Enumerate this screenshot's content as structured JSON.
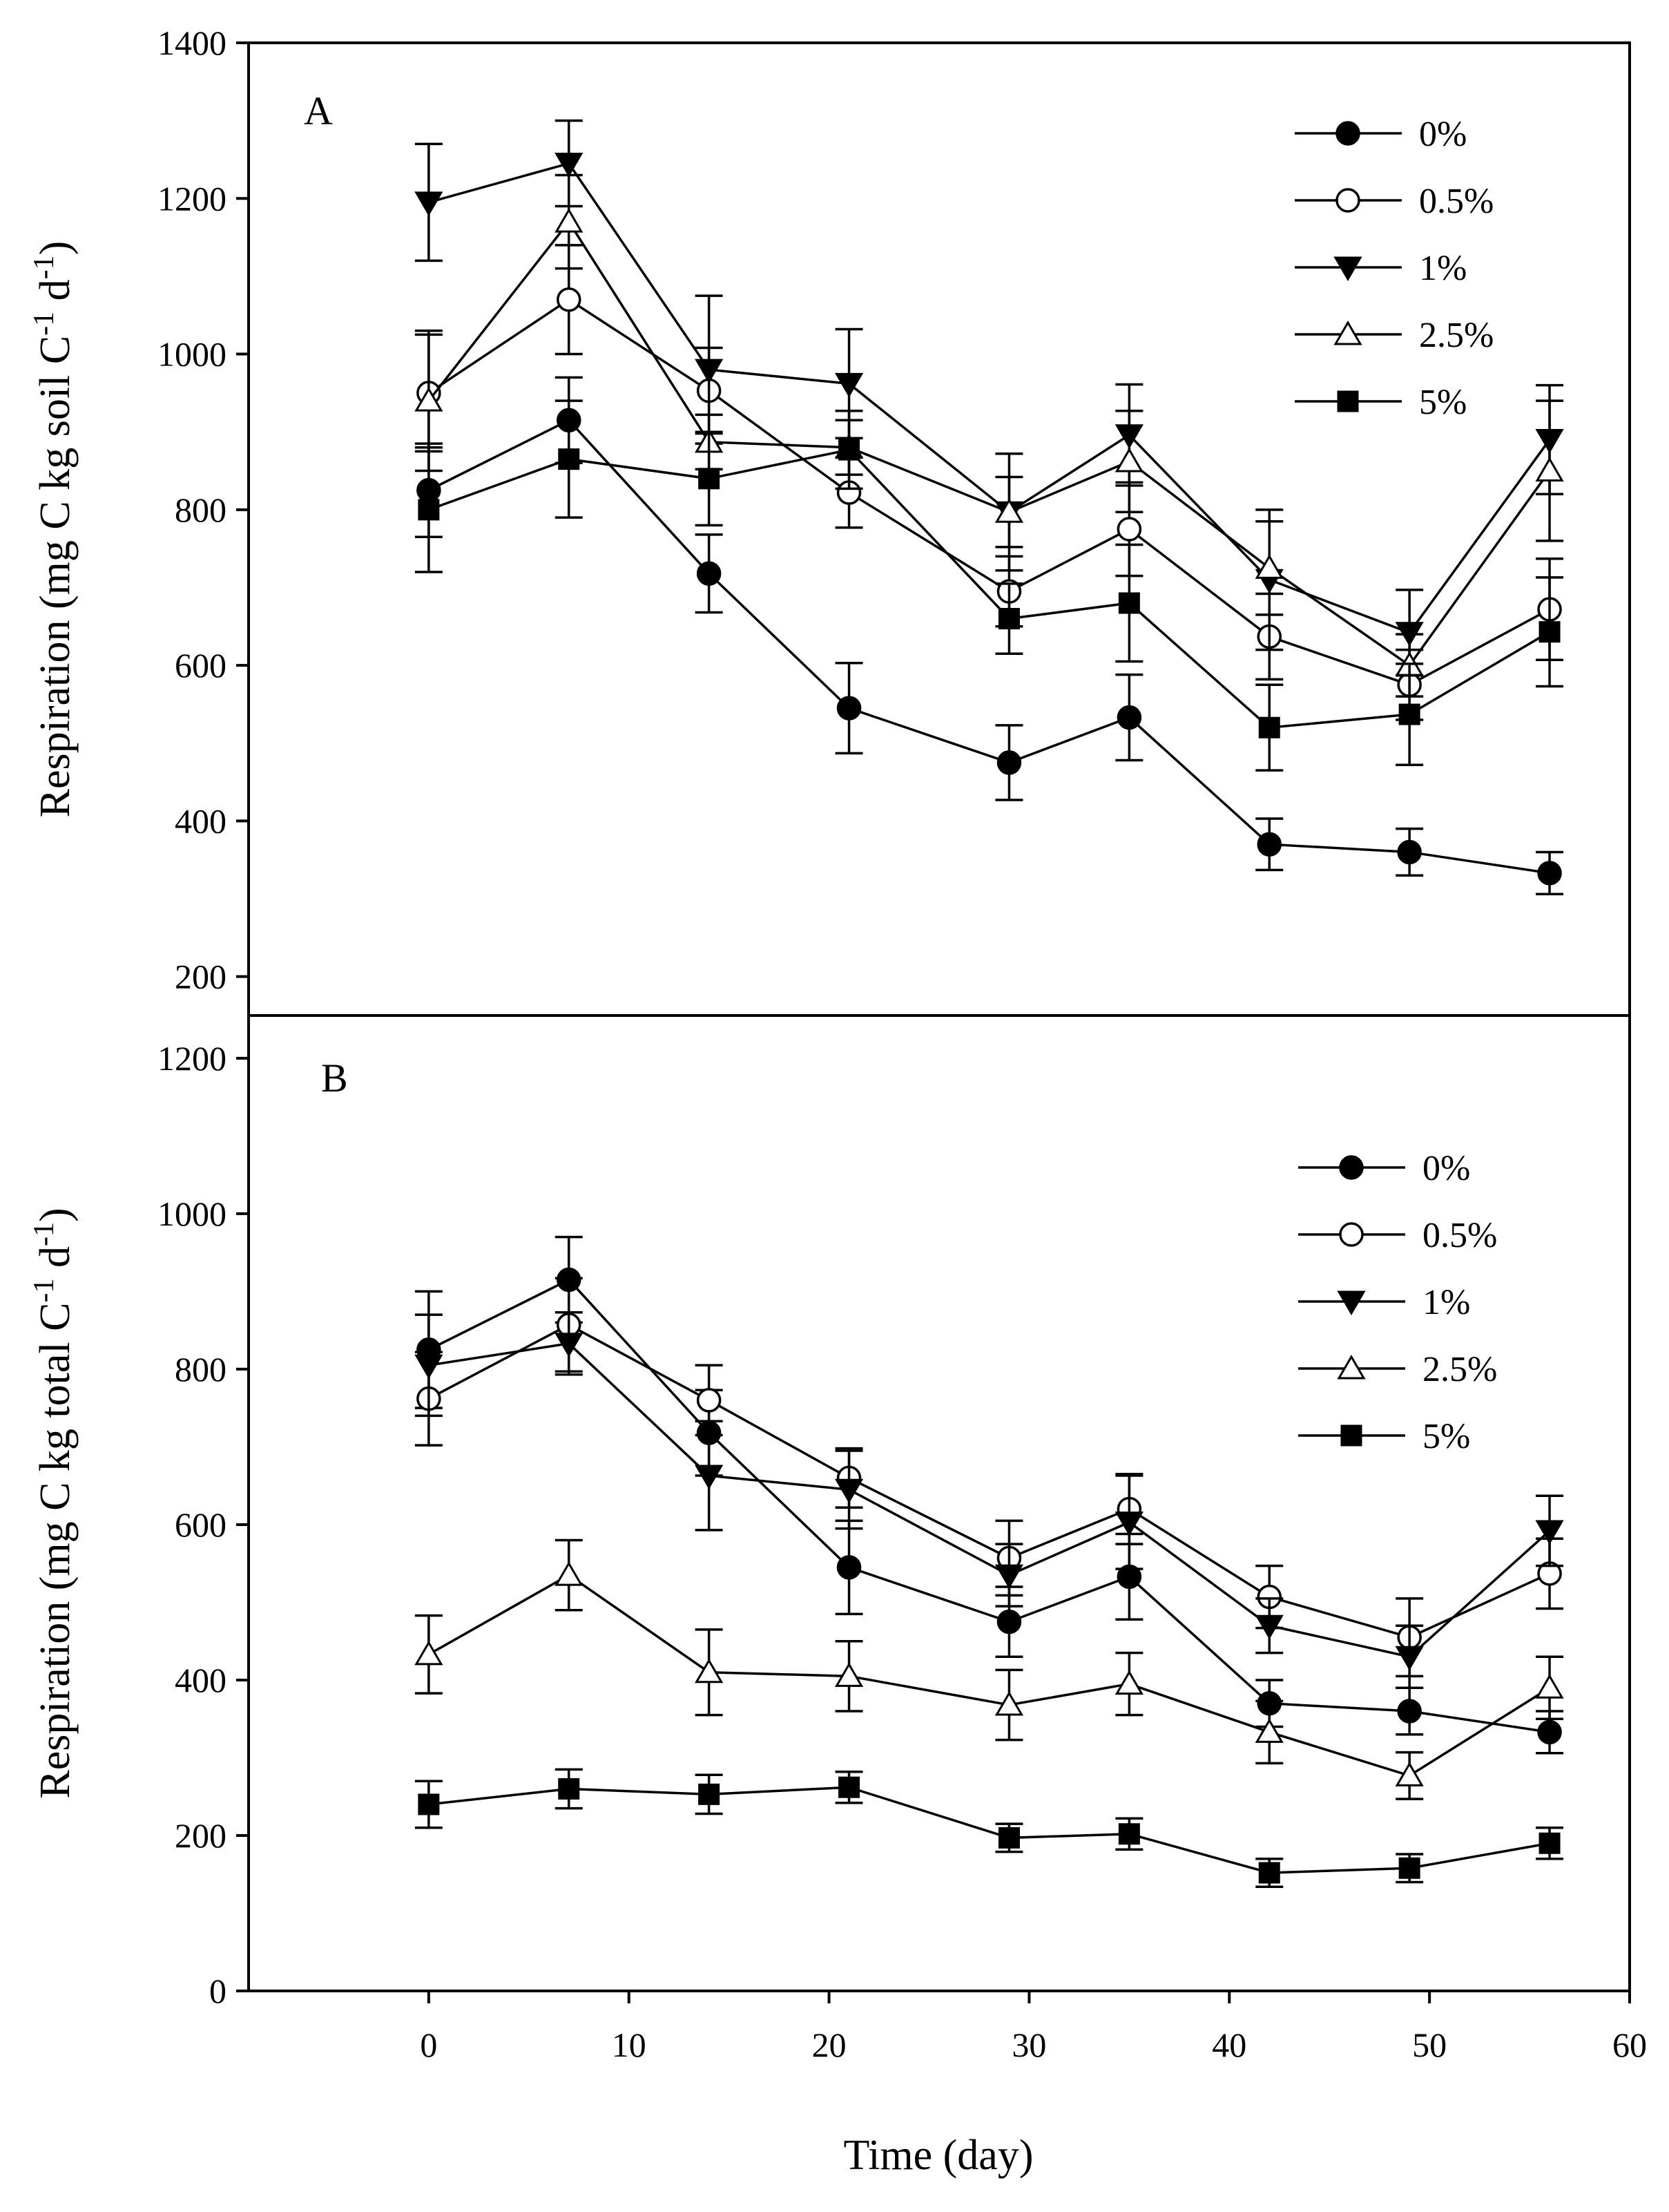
{
  "chart_data": [
    {
      "type": "line",
      "panel_label": "A",
      "ylabel": "Respiration (mg C kg soil C",
      "ylabel_sup1": "-1",
      "ylabel_mid": " d",
      "ylabel_sup2": "-1",
      "ylabel_end": ")",
      "xlim": [
        -9,
        60
      ],
      "ylim": [
        150,
        1400
      ],
      "yticks": [
        200,
        400,
        600,
        800,
        1000,
        1200,
        1400
      ],
      "legend_position": "top-right",
      "x": [
        0,
        7,
        14,
        21,
        29,
        35,
        42,
        49,
        56
      ],
      "series": [
        {
          "name": "0%",
          "marker": "circle-filled",
          "values": [
            825,
            915,
            718,
            545,
            475,
            533,
            370,
            360,
            333
          ],
          "errors": [
            60,
            55,
            50,
            58,
            48,
            55,
            33,
            30,
            27
          ]
        },
        {
          "name": "0.5%",
          "marker": "circle-open",
          "values": [
            950,
            1070,
            953,
            822,
            695,
            775,
            637,
            575,
            672
          ],
          "errors": [
            75,
            70,
            55,
            45,
            45,
            60,
            55,
            45,
            65
          ]
        },
        {
          "name": "1%",
          "marker": "triangle-down-filled",
          "values": [
            1195,
            1245,
            980,
            962,
            797,
            896,
            710,
            642,
            890
          ],
          "errors": [
            75,
            55,
            95,
            70,
            75,
            65,
            90,
            55,
            70
          ]
        },
        {
          "name": "2.5%",
          "marker": "triangle-up-open",
          "values": [
            940,
            1170,
            887,
            880,
            797,
            862,
            725,
            600,
            850
          ],
          "errors": [
            90,
            60,
            35,
            35,
            45,
            65,
            60,
            40,
            90
          ]
        },
        {
          "name": "5%",
          "marker": "square-filled",
          "values": [
            800,
            865,
            840,
            877,
            660,
            680,
            520,
            537,
            643
          ],
          "errors": [
            80,
            75,
            60,
            50,
            45,
            75,
            55,
            65,
            70
          ]
        }
      ]
    },
    {
      "type": "line",
      "panel_label": "B",
      "ylabel": "Respiration (mg C kg total C",
      "ylabel_sup1": "-1",
      "ylabel_mid": " d",
      "ylabel_sup2": "-1",
      "ylabel_end": ")",
      "xlabel": "Time (day)",
      "xlim": [
        -9,
        60
      ],
      "xticks": [
        0,
        10,
        20,
        30,
        40,
        50,
        60
      ],
      "ylim": [
        0,
        1255
      ],
      "yticks": [
        0,
        200,
        400,
        600,
        800,
        1000,
        1200
      ],
      "legend_position": "top-right",
      "x": [
        0,
        7,
        14,
        21,
        29,
        35,
        42,
        49,
        56
      ],
      "series": [
        {
          "name": "0%",
          "marker": "circle-filled",
          "values": [
            825,
            915,
            718,
            545,
            475,
            533,
            370,
            360,
            333
          ],
          "errors": [
            75,
            55,
            55,
            60,
            45,
            55,
            30,
            30,
            27
          ]
        },
        {
          "name": "0.5%",
          "marker": "circle-open",
          "values": [
            762,
            857,
            760,
            660,
            557,
            620,
            507,
            455,
            537
          ],
          "errors": [
            60,
            60,
            45,
            38,
            48,
            45,
            40,
            50,
            45
          ]
        },
        {
          "name": "1%",
          "marker": "triangle-down-filled",
          "values": [
            805,
            833,
            663,
            645,
            535,
            603,
            470,
            430,
            592
          ],
          "errors": [
            65,
            40,
            70,
            50,
            40,
            60,
            35,
            40,
            45
          ]
        },
        {
          "name": "2.5%",
          "marker": "triangle-up-open",
          "values": [
            433,
            535,
            410,
            405,
            368,
            395,
            333,
            277,
            390
          ],
          "errors": [
            50,
            45,
            55,
            45,
            45,
            40,
            40,
            30,
            40
          ]
        },
        {
          "name": "5%",
          "marker": "square-filled",
          "values": [
            240,
            260,
            253,
            262,
            197,
            202,
            152,
            158,
            190
          ],
          "errors": [
            30,
            25,
            25,
            20,
            18,
            20,
            18,
            18,
            20
          ]
        }
      ]
    }
  ]
}
